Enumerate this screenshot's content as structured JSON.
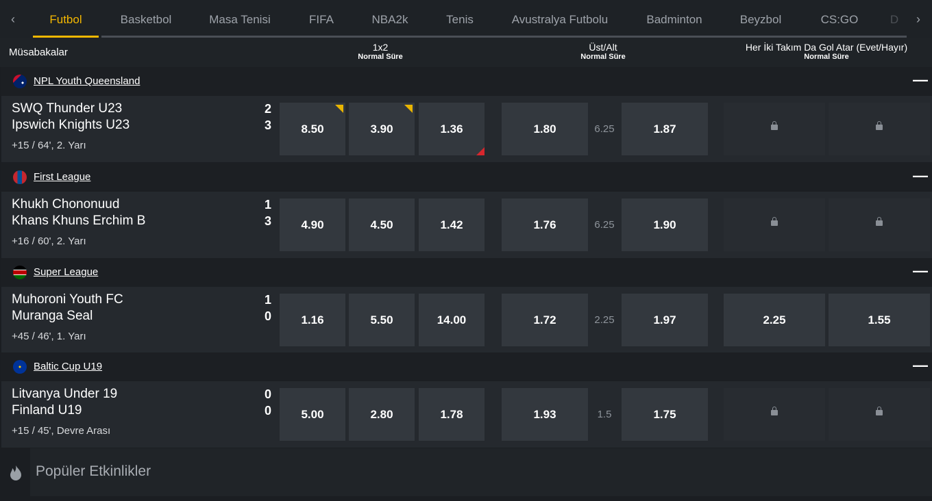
{
  "tabs": [
    "Futbol",
    "Basketbol",
    "Masa Tenisi",
    "FIFA",
    "NBA2k",
    "Tenis",
    "Avustralya Futbolu",
    "Badminton",
    "Beyzbol",
    "CS:GO",
    "D"
  ],
  "active_tab": 0,
  "header": {
    "label": "Müsabakalar",
    "markets": [
      {
        "title": "1x2",
        "subtitle": "Normal Süre"
      },
      {
        "title": "Üst/Alt",
        "subtitle": "Normal Süre"
      },
      {
        "title": "Her İki Takım Da Gol Atar (Evet/Hayır)",
        "subtitle": "Normal Süre"
      }
    ]
  },
  "leagues": [
    {
      "name": "NPL Youth Queensland",
      "home": "SWQ Thunder U23",
      "away": "Ipswich Knights U23",
      "home_score": 2,
      "away_score": 3,
      "status": "+15 / 64', 2. Yarı",
      "odds_1x2": [
        "8.50",
        "3.90",
        "1.36"
      ],
      "over_under": {
        "over": "1.80",
        "line": "6.25",
        "under": "1.87"
      },
      "btts": [
        null,
        null
      ]
    },
    {
      "name": "First League",
      "home": "Khukh Chononuud",
      "away": "Khans Khuns Erchim B",
      "home_score": 1,
      "away_score": 3,
      "status": "+16 / 60', 2. Yarı",
      "odds_1x2": [
        "4.90",
        "4.50",
        "1.42"
      ],
      "over_under": {
        "over": "1.76",
        "line": "6.25",
        "under": "1.90"
      },
      "btts": [
        null,
        null
      ]
    },
    {
      "name": "Super League",
      "home": "Muhoroni Youth FC",
      "away": "Muranga Seal",
      "home_score": 1,
      "away_score": 0,
      "status": "+45 / 46', 1. Yarı",
      "odds_1x2": [
        "1.16",
        "5.50",
        "14.00"
      ],
      "over_under": {
        "over": "1.72",
        "line": "2.25",
        "under": "1.97"
      },
      "btts": [
        "2.25",
        "1.55"
      ]
    },
    {
      "name": "Baltic Cup U19",
      "home": "Litvanya Under 19",
      "away": "Finland U19",
      "home_score": 0,
      "away_score": 0,
      "status": "+15 / 45', Devre Arası",
      "odds_1x2": [
        "5.00",
        "2.80",
        "1.78"
      ],
      "over_under": {
        "over": "1.93",
        "line": "1.5",
        "under": "1.75"
      },
      "btts": [
        null,
        null
      ]
    }
  ],
  "popular": "Popüler Etkinlikler"
}
